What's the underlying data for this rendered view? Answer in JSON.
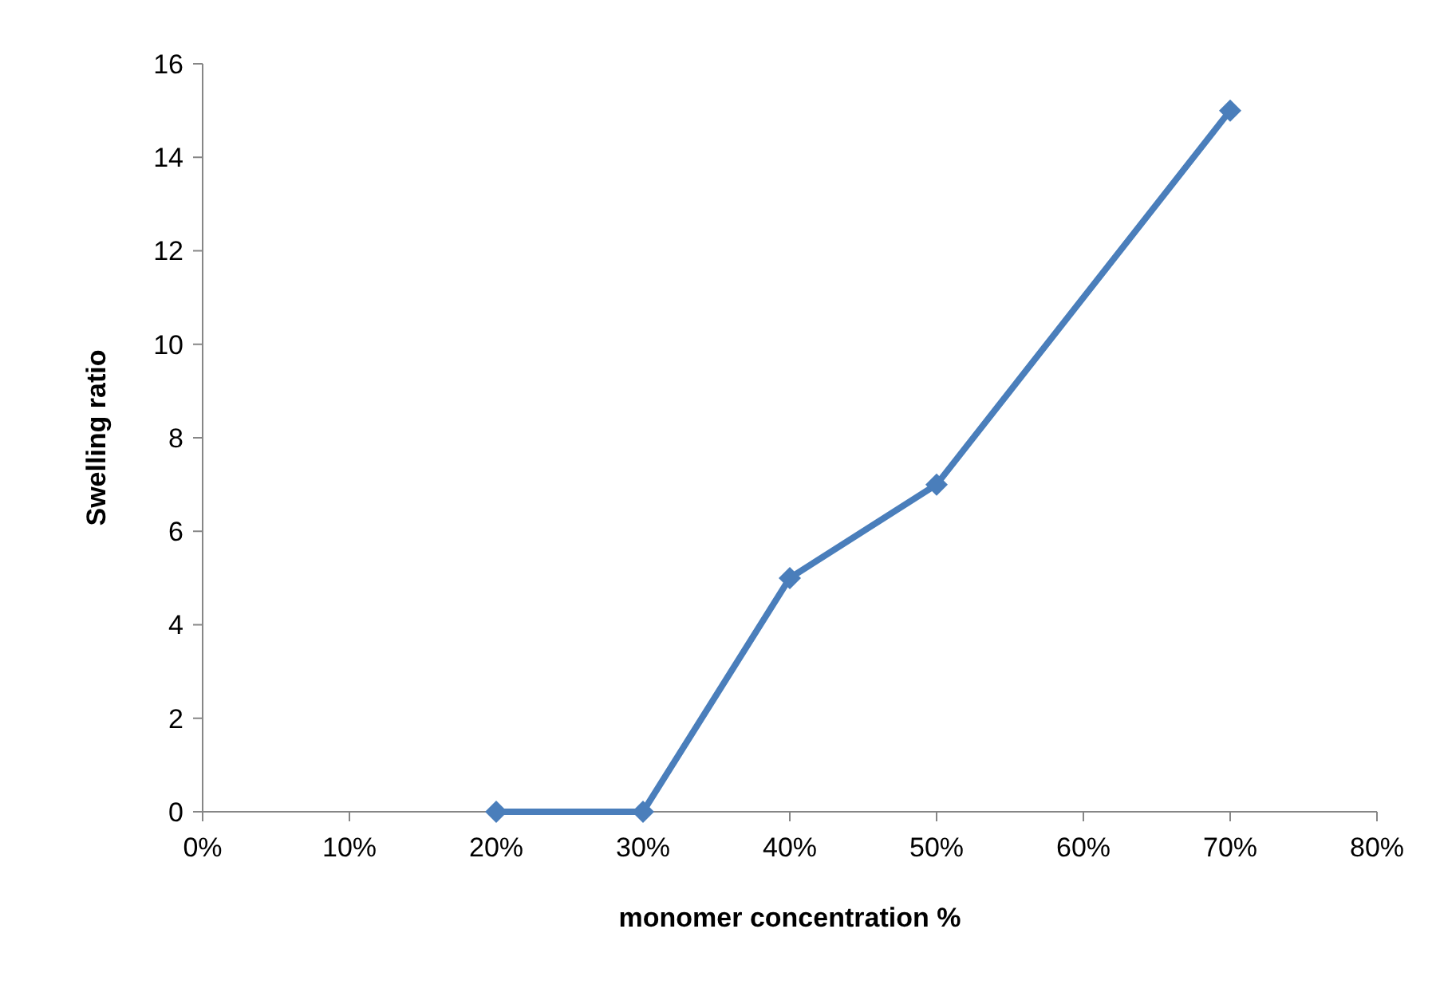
{
  "chart_data": {
    "type": "line",
    "xlabel": "monomer concentration %",
    "ylabel": "Swelling ratio",
    "x": [
      20,
      30,
      40,
      50,
      70
    ],
    "series": [
      {
        "color": "#4a7ebb",
        "values": [
          0,
          0,
          5,
          7,
          15
        ]
      }
    ],
    "xlim": [
      0,
      80
    ],
    "xticks": [
      {
        "value": 0,
        "label": "0%"
      },
      {
        "value": 10,
        "label": "10%"
      },
      {
        "value": 20,
        "label": "20%"
      },
      {
        "value": 30,
        "label": "30%"
      },
      {
        "value": 40,
        "label": "40%"
      },
      {
        "value": 50,
        "label": "50%"
      },
      {
        "value": 60,
        "label": "60%"
      },
      {
        "value": 70,
        "label": "70%"
      },
      {
        "value": 80,
        "label": "80%"
      }
    ],
    "ylim": [
      0,
      16
    ],
    "yticks": [
      0,
      2,
      4,
      6,
      8,
      10,
      12,
      14,
      16
    ],
    "grid": false,
    "marker": "diamond",
    "line_style": "solid"
  }
}
